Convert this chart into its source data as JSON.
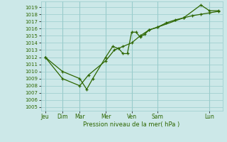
{
  "xlabel": "Pression niveau de la mer( hPa )",
  "ylim": [
    1004.5,
    1019.8
  ],
  "yticks": [
    1005,
    1006,
    1007,
    1008,
    1009,
    1010,
    1011,
    1012,
    1013,
    1014,
    1015,
    1016,
    1017,
    1018,
    1019
  ],
  "day_labels": [
    "Jeu",
    "Dim",
    "Mar",
    "Mer",
    "Ven",
    "Sam",
    "Lun"
  ],
  "day_positions": [
    0,
    2,
    4,
    7,
    10,
    13,
    19
  ],
  "xlim": [
    -0.5,
    20.5
  ],
  "line1_x": [
    0,
    2,
    4,
    4.8,
    5.5,
    7,
    7.8,
    8.5,
    9,
    9.5,
    10,
    10.5,
    11,
    11.5,
    12,
    13,
    16,
    18,
    19,
    20
  ],
  "line1_y": [
    1012,
    1010,
    1009,
    1007.5,
    1009.0,
    1012,
    1013.5,
    1013.2,
    1012.5,
    1012.5,
    1015.5,
    1015.5,
    1014.8,
    1015.2,
    1015.8,
    1016.2,
    1017.5,
    1019.3,
    1018.5,
    1018.5
  ],
  "line2_x": [
    0,
    2,
    4,
    5,
    7,
    8,
    9,
    10,
    11,
    12,
    13,
    14,
    15,
    16,
    17,
    18,
    19,
    20
  ],
  "line2_y": [
    1012,
    1009,
    1008,
    1009.5,
    1011.5,
    1013.0,
    1013.5,
    1014.0,
    1015.0,
    1015.8,
    1016.2,
    1016.8,
    1017.2,
    1017.5,
    1017.8,
    1018.0,
    1018.2,
    1018.4
  ],
  "bg_color": "#cce8e8",
  "grid_color": "#99cccc",
  "line_color": "#2d6600",
  "font_color": "#2d6600"
}
